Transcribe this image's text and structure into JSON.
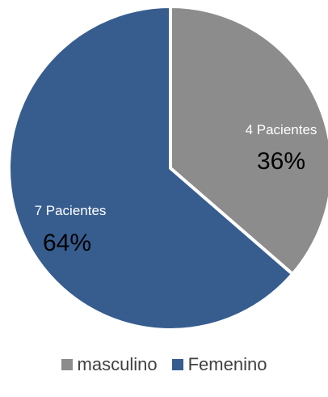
{
  "chart_data": {
    "type": "pie",
    "series": [
      {
        "name": "masculino",
        "value": 4,
        "count_label": "4 Pacientes",
        "percent_label": "36%",
        "color": "#8c8c8c"
      },
      {
        "name": "Femenino",
        "value": 7,
        "count_label": "7 Pacientes",
        "percent_label": "64%",
        "color": "#375d8f"
      }
    ],
    "legend": {
      "placement": "bottom",
      "entries": [
        "masculino",
        "Femenino"
      ]
    },
    "title": "",
    "grid": false
  }
}
